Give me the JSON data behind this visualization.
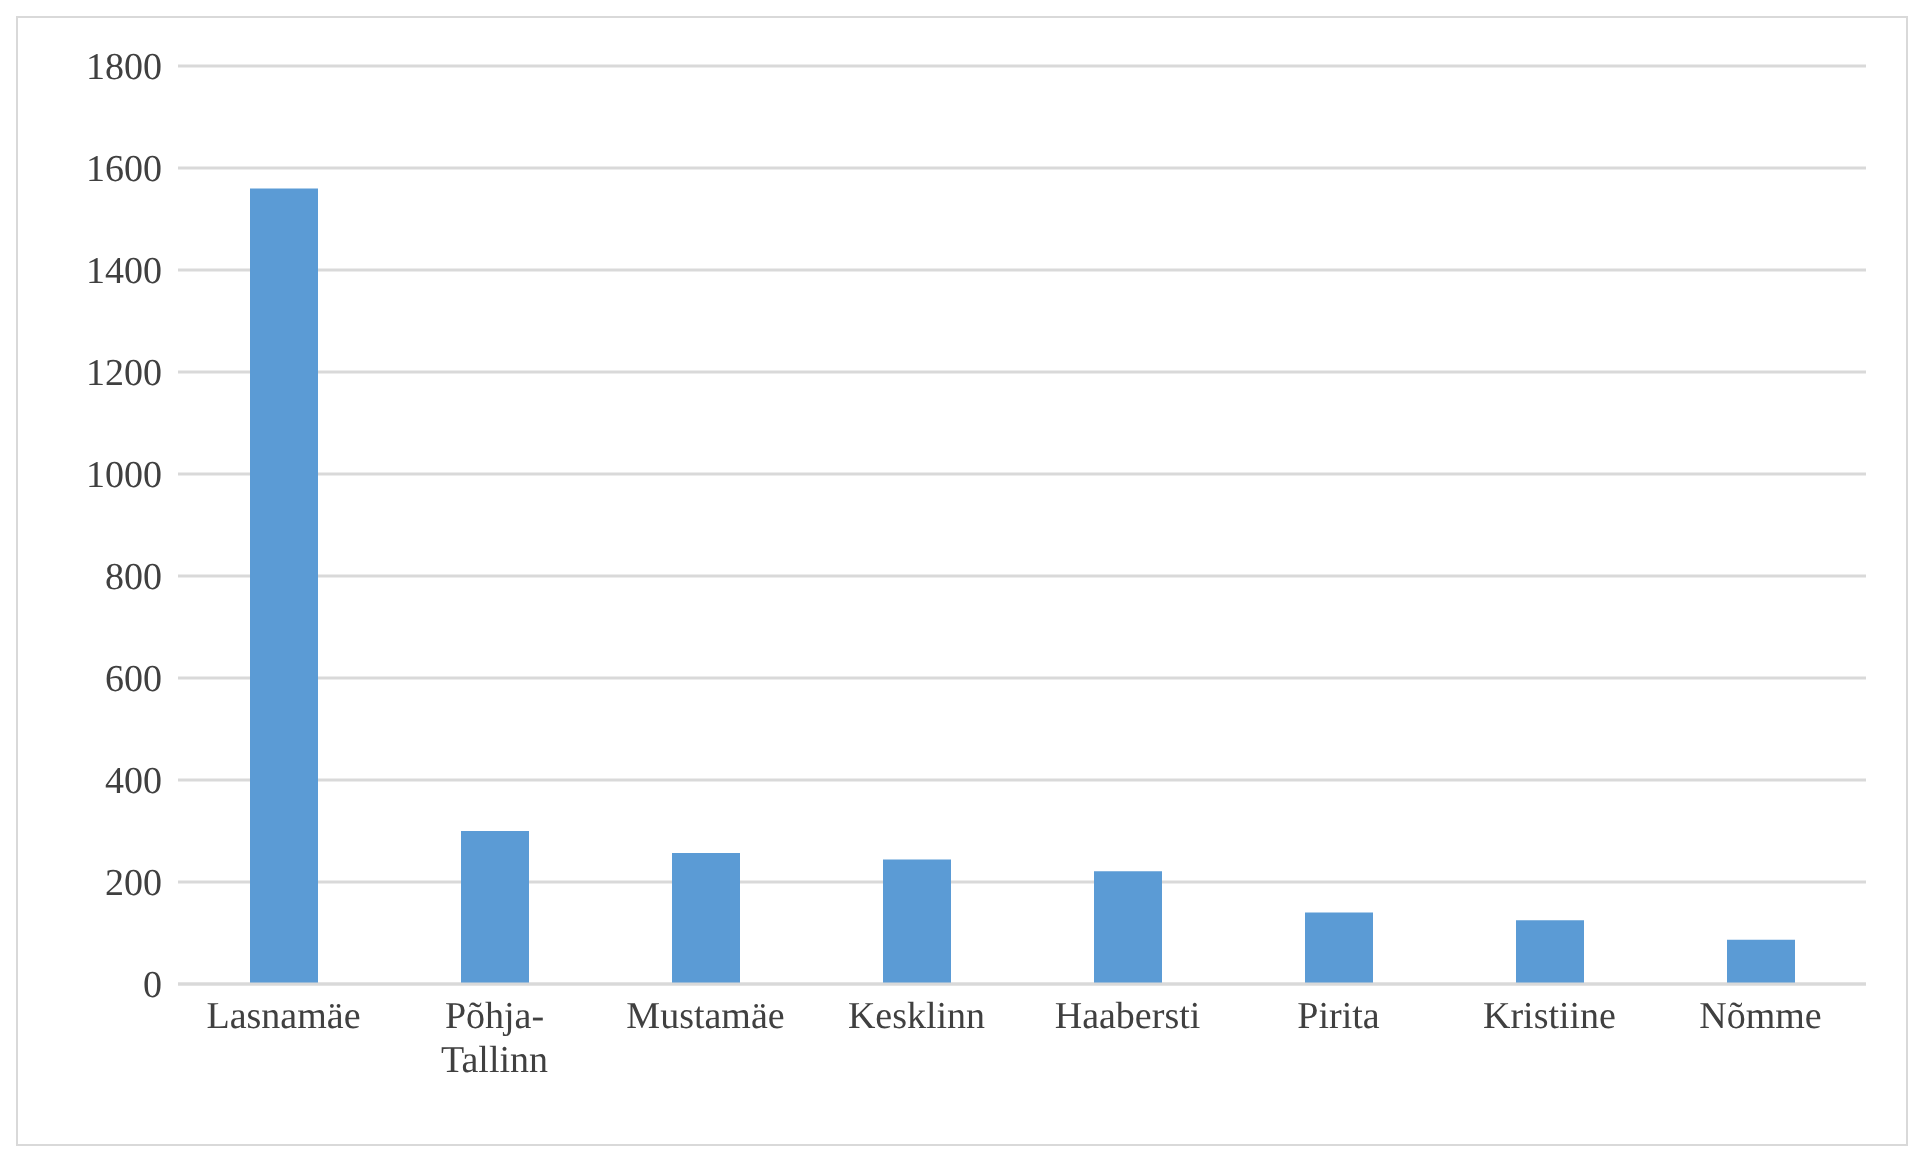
{
  "chart_data": {
    "type": "bar",
    "categories": [
      "Lasnamäe",
      "Põhja-Tallinn",
      "Mustamäe",
      "Kesklinn",
      "Haabersti",
      "Pirita",
      "Kristiine",
      "Nõmme"
    ],
    "values": [
      1560,
      300,
      257,
      244,
      221,
      140,
      125,
      87
    ],
    "color": "#5b9bd5",
    "ylim": [
      0,
      1800
    ],
    "yticks": [
      0,
      200,
      400,
      600,
      800,
      1000,
      1200,
      1400,
      1600,
      1800
    ],
    "grid": "y"
  }
}
